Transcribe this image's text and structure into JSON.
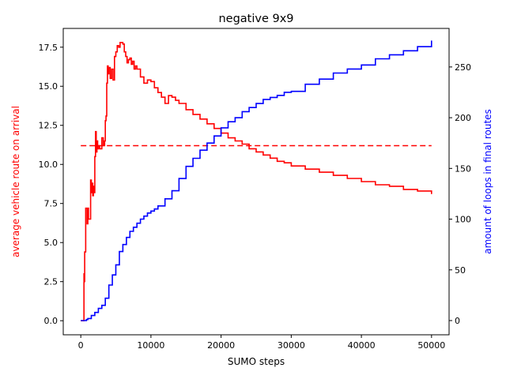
{
  "chart_data": {
    "type": "line",
    "title": "negative 9x9",
    "xlabel": "SUMO steps",
    "ylabel_left": "average vehicle route on arrival",
    "ylabel_right": "amount of loops in final routes",
    "xlim": [
      -2500,
      52500
    ],
    "ylim_left": [
      -0.9,
      18.7
    ],
    "ylim_right": [
      -14,
      288
    ],
    "xticks": [
      0,
      10000,
      20000,
      30000,
      40000,
      50000
    ],
    "yticks_left": [
      0.0,
      2.5,
      5.0,
      7.5,
      10.0,
      12.5,
      15.0,
      17.5
    ],
    "yticks_right": [
      0,
      50,
      100,
      150,
      200,
      250
    ],
    "xtick_labels": [
      "0",
      "10000",
      "20000",
      "30000",
      "40000",
      "50000"
    ],
    "ytick_labels_left": [
      "0.0",
      "2.5",
      "5.0",
      "7.5",
      "10.0",
      "12.5",
      "15.0",
      "17.5"
    ],
    "ytick_labels_right": [
      "0",
      "50",
      "100",
      "150",
      "200",
      "250"
    ],
    "grid": false,
    "colors": {
      "left_series": "#ff0000",
      "right_series": "#0000ff",
      "axes": "#000000",
      "background": "#ffffff"
    },
    "series": [
      {
        "axis": "left",
        "style": "solid",
        "x": [
          0,
          400,
          450,
          500,
          550,
          650,
          700,
          800,
          900,
          1000,
          1100,
          1200,
          1400,
          1500,
          1600,
          1700,
          1800,
          1900,
          2000,
          2100,
          2200,
          2300,
          2400,
          2500,
          2700,
          3000,
          3200,
          3400,
          3500,
          3600,
          3700,
          3800,
          3900,
          4000,
          4200,
          4400,
          4600,
          4800,
          5000,
          5200,
          5400,
          5600,
          5800,
          6000,
          6200,
          6400,
          6600,
          6800,
          7000,
          7200,
          7400,
          7600,
          7800,
          8000,
          8500,
          9000,
          9500,
          10000,
          10500,
          11000,
          11500,
          12000,
          12500,
          13000,
          13500,
          14000,
          15000,
          16000,
          17000,
          18000,
          19000,
          20000,
          21000,
          22000,
          23000,
          24000,
          25000,
          26000,
          27000,
          28000,
          29000,
          30000,
          32000,
          34000,
          36000,
          38000,
          40000,
          42000,
          44000,
          46000,
          48000,
          50000
        ],
        "y": [
          0.0,
          0.0,
          3.0,
          2.5,
          4.4,
          4.4,
          7.2,
          7.2,
          6.2,
          7.2,
          6.5,
          6.5,
          9.0,
          8.2,
          8.8,
          8.0,
          8.6,
          8.2,
          10.5,
          12.1,
          10.8,
          11.5,
          11.0,
          11.2,
          11.0,
          11.7,
          11.2,
          11.5,
          12.8,
          13.1,
          15.2,
          16.3,
          15.8,
          16.2,
          15.5,
          16.1,
          15.4,
          16.9,
          17.2,
          17.6,
          17.5,
          17.8,
          17.8,
          17.7,
          17.2,
          16.9,
          16.5,
          16.7,
          16.8,
          16.4,
          16.6,
          16.1,
          16.3,
          16.1,
          15.6,
          15.2,
          15.4,
          15.3,
          14.9,
          14.6,
          14.3,
          13.9,
          14.4,
          14.3,
          14.1,
          13.9,
          13.5,
          13.2,
          12.9,
          12.6,
          12.3,
          12.0,
          11.7,
          11.5,
          11.3,
          11.0,
          10.8,
          10.6,
          10.4,
          10.2,
          10.1,
          9.9,
          9.7,
          9.5,
          9.3,
          9.1,
          8.9,
          8.7,
          8.6,
          8.4,
          8.3,
          8.1
        ]
      },
      {
        "axis": "left",
        "style": "dashed",
        "x": [
          0,
          50000
        ],
        "y": [
          11.2,
          11.2
        ]
      },
      {
        "axis": "right",
        "style": "solid",
        "x": [
          0,
          500,
          800,
          1000,
          1500,
          2000,
          2500,
          3000,
          3500,
          4000,
          4500,
          5000,
          5500,
          6000,
          6500,
          7000,
          7500,
          8000,
          8500,
          9000,
          9500,
          10000,
          10500,
          11000,
          12000,
          13000,
          14000,
          15000,
          16000,
          17000,
          18000,
          19000,
          20000,
          21000,
          22000,
          23000,
          24000,
          25000,
          26000,
          27000,
          28000,
          29000,
          30000,
          32000,
          34000,
          36000,
          38000,
          40000,
          42000,
          44000,
          46000,
          48000,
          50000
        ],
        "y": [
          0,
          0,
          1,
          2,
          5,
          8,
          12,
          15,
          22,
          35,
          45,
          55,
          68,
          75,
          82,
          88,
          92,
          96,
          100,
          103,
          106,
          108,
          110,
          113,
          120,
          128,
          140,
          152,
          160,
          168,
          175,
          182,
          190,
          196,
          200,
          206,
          210,
          214,
          218,
          220,
          222,
          225,
          226,
          233,
          238,
          244,
          248,
          252,
          258,
          262,
          266,
          270,
          276
        ]
      }
    ]
  }
}
